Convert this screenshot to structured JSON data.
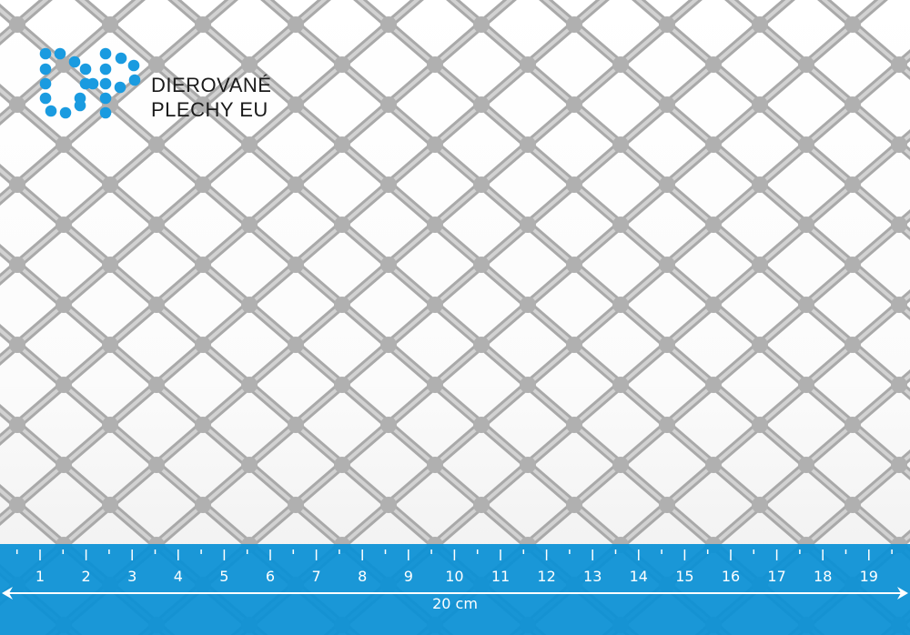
{
  "logo": {
    "line1": "DIEROVANÉ",
    "line2": "PLECHY EU",
    "monogram": "DP",
    "dot_color": "#1a9be0"
  },
  "ruler": {
    "color": "#0a90d5",
    "ticks": [
      "1",
      "2",
      "3",
      "4",
      "5",
      "6",
      "7",
      "8",
      "9",
      "10",
      "11",
      "12",
      "13",
      "14",
      "15",
      "16",
      "17",
      "18",
      "19"
    ],
    "length_label": "20 cm"
  },
  "mesh": {
    "color": "#b4b4b4"
  }
}
